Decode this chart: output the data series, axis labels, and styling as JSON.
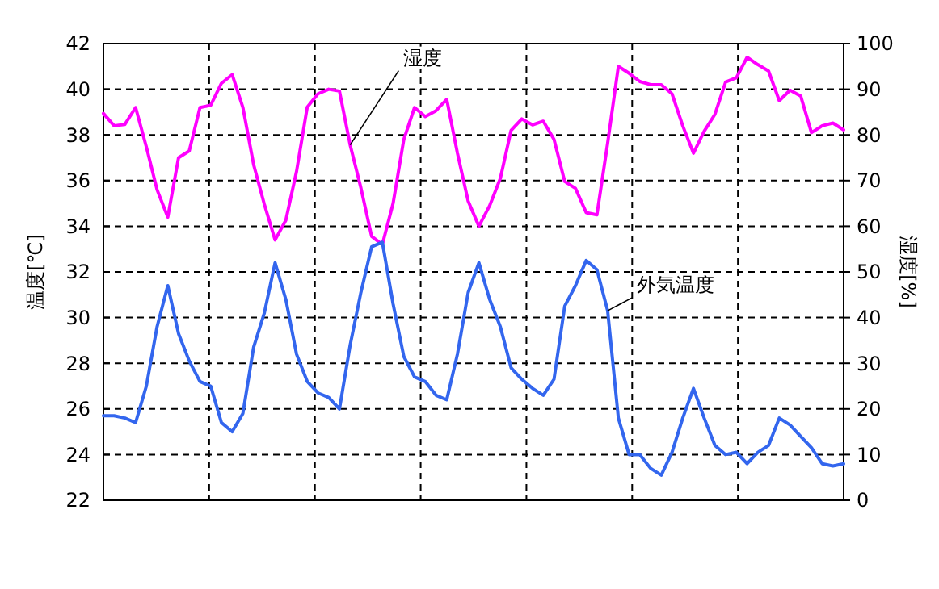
{
  "chart_data": {
    "type": "line",
    "ylabel": "温度[℃]",
    "y2label": "湿度[%]",
    "categories": [
      null,
      null,
      null,
      null,
      null,
      null,
      null,
      null,
      null,
      null,
      null,
      null,
      null,
      null,
      null,
      null,
      null,
      null,
      null,
      null,
      null,
      null,
      null,
      null,
      null,
      null,
      null,
      null,
      null,
      null,
      null,
      null,
      null,
      null,
      null,
      null,
      null,
      null,
      null,
      null,
      null,
      null,
      null,
      null,
      null,
      null,
      null,
      null,
      null,
      null,
      null,
      null,
      null,
      null,
      null,
      null,
      null,
      null,
      null,
      null,
      null,
      null,
      null,
      null,
      null,
      null,
      null,
      null,
      null,
      null
    ],
    "ylim": [
      22,
      42
    ],
    "yticks": [
      22,
      24,
      26,
      28,
      30,
      32,
      34,
      36,
      38,
      40,
      42
    ],
    "y2lim": [
      0,
      100
    ],
    "y2ticks": [
      0,
      10,
      20,
      30,
      40,
      50,
      60,
      70,
      80,
      90,
      100
    ],
    "grid": true,
    "line_style": "solid",
    "marker": "none",
    "series": [
      {
        "name": "湿度",
        "color": "#ff00ff",
        "axis": "y2",
        "values": [
          84.7,
          82.0,
          82.3,
          86.0,
          77.4,
          68.0,
          62.0,
          75.0,
          76.5,
          86.0,
          86.5,
          91.3,
          93.2,
          86.0,
          73.5,
          64.8,
          57.0,
          61.3,
          72.0,
          86.1,
          89.0,
          90.0,
          89.6,
          77.8,
          68.4,
          57.8,
          56.0,
          65.0,
          79.0,
          86.0,
          84.0,
          85.3,
          87.8,
          76.0,
          65.5,
          60.0,
          64.5,
          70.5,
          81.0,
          83.5,
          82.2,
          83.0,
          79.0,
          69.8,
          68.3,
          63.0,
          62.5,
          78.2,
          95.0,
          93.5,
          91.7,
          91.0,
          91.0,
          89.0,
          82.0,
          76.0,
          80.8,
          84.5,
          91.6,
          92.5,
          97.0,
          95.4,
          94.0,
          87.5,
          89.8,
          88.5,
          80.5,
          82.0,
          82.6,
          81.1
        ]
      },
      {
        "name": "外気温度",
        "color": "#3366ee",
        "values": [
          25.7,
          25.7,
          25.6,
          25.4,
          27.0,
          29.6,
          31.4,
          29.3,
          28.1,
          27.2,
          27.0,
          25.4,
          25.0,
          25.8,
          28.7,
          30.2,
          32.4,
          30.8,
          28.4,
          27.2,
          26.7,
          26.5,
          26.0,
          28.8,
          31.1,
          33.1,
          33.3,
          30.6,
          28.3,
          27.4,
          27.2,
          26.6,
          26.4,
          28.4,
          31.1,
          32.4,
          30.8,
          29.6,
          27.8,
          27.3,
          26.9,
          26.6,
          27.3,
          30.5,
          31.4,
          32.5,
          32.1,
          30.3,
          25.6,
          24.0,
          24.0,
          23.4,
          23.1,
          24.1,
          25.6,
          26.9,
          25.6,
          24.4,
          24.0,
          24.1,
          23.6,
          24.1,
          24.4,
          25.6,
          25.3,
          24.8,
          24.3,
          23.6,
          23.5,
          23.6
        ]
      }
    ]
  }
}
